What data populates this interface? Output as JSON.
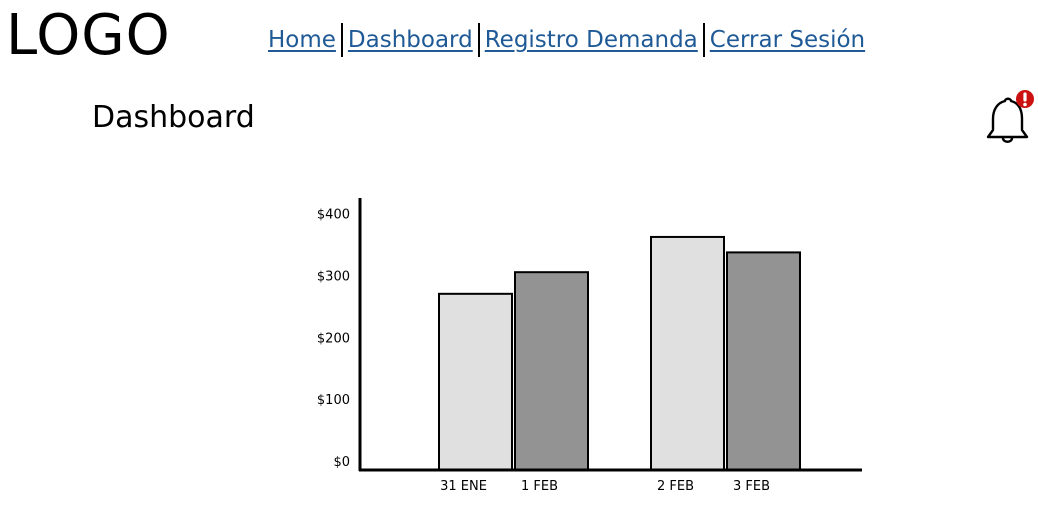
{
  "header": {
    "logo_text": "LOGO",
    "nav": [
      {
        "label": "Home"
      },
      {
        "label": "Dashboard"
      },
      {
        "label": "Registro Demanda"
      },
      {
        "label": "Cerrar Sesión"
      }
    ],
    "link_color": "#1f5a96"
  },
  "main": {
    "title": "Dashboard",
    "notification": {
      "icon": "bell-icon",
      "badge_icon": "exclamation-icon",
      "badge_color": "#cc1111"
    }
  },
  "chart_data": {
    "type": "bar",
    "categories": [
      "31 ENE",
      "1 FEB",
      "2 FEB",
      "3 FEB"
    ],
    "values": [
      285,
      320,
      377,
      352
    ],
    "bar_colors": [
      "#e0e0e0",
      "#939393",
      "#e0e0e0",
      "#939393"
    ],
    "y_ticks": [
      "$0",
      "$100",
      "$200",
      "$300",
      "$400"
    ],
    "ylim": [
      0,
      440
    ],
    "grid": false,
    "title": "",
    "xlabel": "",
    "ylabel": ""
  }
}
